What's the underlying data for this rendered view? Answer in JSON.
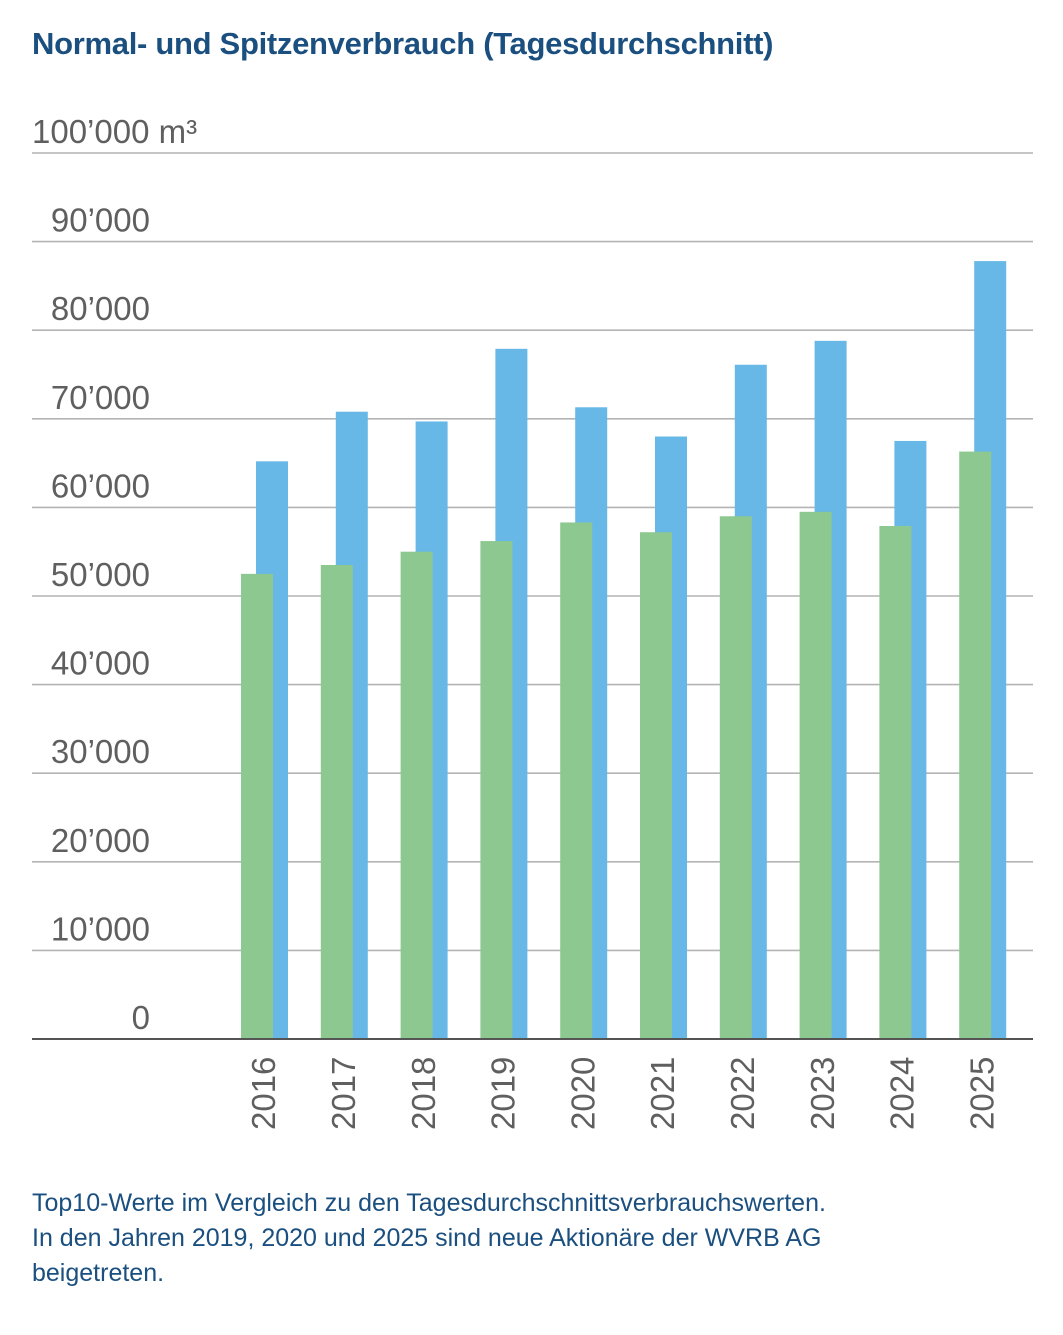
{
  "title": "Normal- und Spitzenverbrauch (Tagesdurchschnitt)",
  "chart_data": {
    "type": "bar",
    "title": "Normal- und Spitzenverbrauch (Tagesdurchschnitt)",
    "categories": [
      "2016",
      "2017",
      "2018",
      "2019",
      "2020",
      "2021",
      "2022",
      "2023",
      "2024",
      "2025"
    ],
    "series": [
      {
        "values": [
          52500,
          53500,
          55000,
          56200,
          58300,
          57200,
          59000,
          59500,
          57900,
          66300
        ],
        "color": "#8dc891"
      },
      {
        "values": [
          65200,
          70800,
          69700,
          77900,
          71300,
          68000,
          76100,
          78800,
          67500,
          87800
        ],
        "color": "#67b8e6"
      }
    ],
    "ylim": [
      0,
      100000
    ],
    "yticks": [
      0,
      10000,
      20000,
      30000,
      40000,
      50000,
      60000,
      70000,
      80000,
      90000,
      100000
    ],
    "ytick_labels": [
      "0",
      "10’000",
      "20’000",
      "30’000",
      "40’000",
      "50’000",
      "60’000",
      "70’000",
      "80’000",
      "90’000",
      "100’000 m³"
    ],
    "grid": true,
    "legend": "none"
  },
  "caption": {
    "line1": "Top10-Werte im Vergleich zu den Tagesdurchschnittsverbrauchswerten.",
    "line2": "In den Jahren 2019, 2020 und 2025 sind neue Aktionäre der WVRB AG",
    "line3": "beigetreten."
  }
}
